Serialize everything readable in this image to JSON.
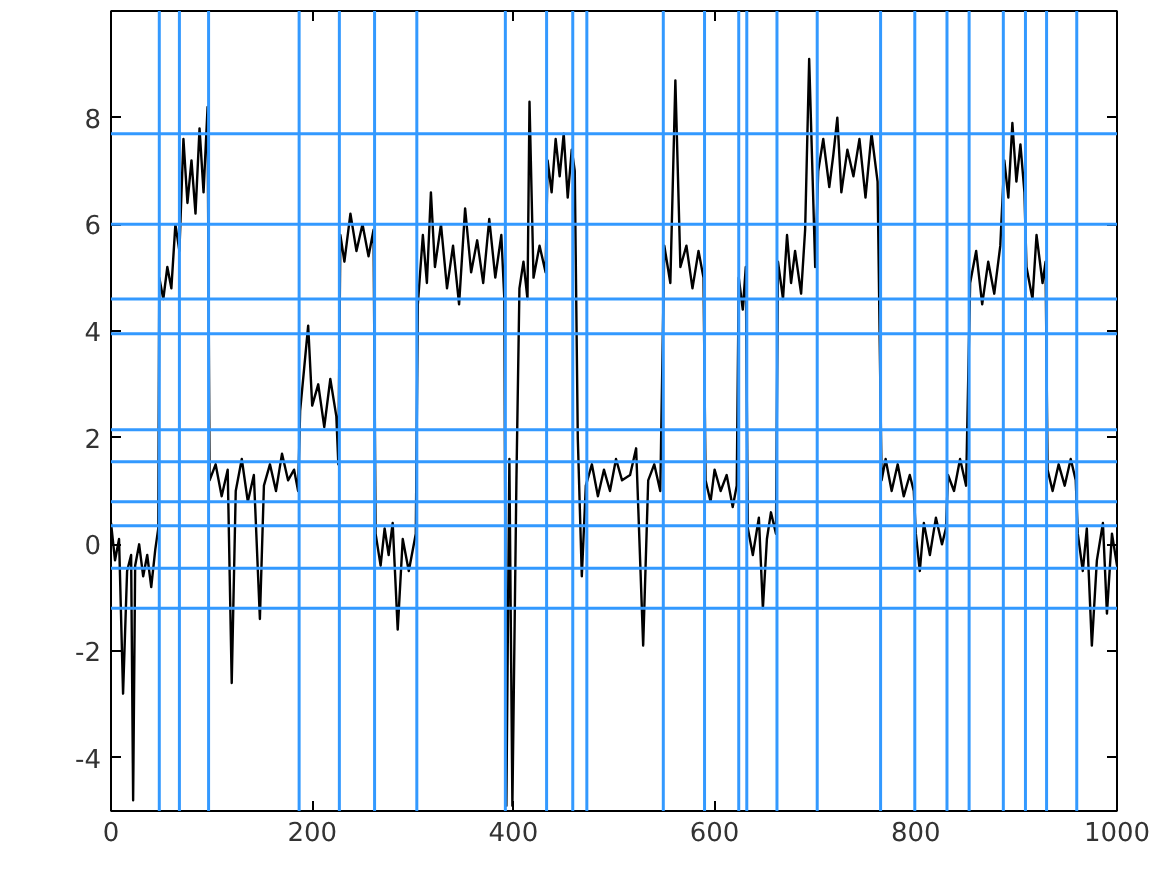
{
  "chart_data": {
    "type": "line",
    "xlim": [
      0,
      1000
    ],
    "ylim": [
      -5,
      10
    ],
    "xticks": [
      0,
      200,
      400,
      600,
      800,
      1000
    ],
    "yticks": [
      -4,
      -2,
      0,
      2,
      4,
      6,
      8
    ],
    "grid": false,
    "line_style": "solid",
    "marker": "none",
    "series": [
      {
        "color": "#000000",
        "x": [
          0,
          4,
          8,
          12,
          16,
          20,
          22,
          24,
          28,
          32,
          36,
          40,
          44,
          47,
          48,
          52,
          56,
          60,
          64,
          68,
          72,
          76,
          80,
          84,
          88,
          92,
          96,
          98,
          104,
          110,
          116,
          120,
          124,
          130,
          136,
          142,
          148,
          152,
          158,
          164,
          170,
          176,
          182,
          186,
          188,
          192,
          196,
          200,
          206,
          212,
          218,
          224,
          226,
          228,
          232,
          238,
          244,
          250,
          256,
          261,
          263,
          268,
          272,
          276,
          280,
          285,
          290,
          296,
          303,
          305,
          310,
          314,
          318,
          322,
          328,
          334,
          340,
          346,
          352,
          358,
          364,
          370,
          376,
          382,
          388,
          391,
          393,
          396,
          399,
          403,
          406,
          410,
          414,
          416,
          420,
          426,
          432,
          434,
          438,
          442,
          446,
          450,
          454,
          458,
          461,
          464,
          468,
          472,
          478,
          484,
          490,
          496,
          502,
          508,
          516,
          522,
          529,
          534,
          540,
          546,
          550,
          556,
          561,
          566,
          572,
          578,
          584,
          589,
          591,
          596,
          600,
          606,
          612,
          618,
          622,
          624,
          628,
          631,
          633,
          638,
          644,
          648,
          652,
          656,
          661,
          663,
          668,
          672,
          676,
          680,
          686,
          690,
          694,
          700,
          703,
          708,
          714,
          718,
          722,
          726,
          732,
          738,
          744,
          750,
          756,
          762,
          766,
          770,
          776,
          782,
          788,
          794,
          798,
          800,
          804,
          808,
          814,
          820,
          826,
          830,
          832,
          838,
          844,
          850,
          854,
          860,
          866,
          872,
          878,
          884,
          888,
          892,
          896,
          900,
          904,
          908,
          910,
          916,
          920,
          926,
          929,
          931,
          936,
          942,
          948,
          954,
          959,
          961,
          966,
          970,
          975,
          980,
          986,
          990,
          995,
          1000
        ],
        "values": [
          0.4,
          -0.3,
          0.1,
          -2.8,
          -0.5,
          -0.2,
          -4.8,
          -0.4,
          0.0,
          -0.6,
          -0.2,
          -0.8,
          -0.1,
          0.3,
          5.0,
          4.6,
          5.2,
          4.8,
          6.0,
          5.5,
          7.6,
          6.4,
          7.2,
          6.2,
          7.8,
          6.6,
          8.2,
          1.2,
          1.5,
          0.9,
          1.4,
          -2.6,
          1.0,
          1.6,
          0.8,
          1.3,
          -1.4,
          1.1,
          1.5,
          1.0,
          1.7,
          1.2,
          1.4,
          1.0,
          2.5,
          3.3,
          4.1,
          2.6,
          3.0,
          2.2,
          3.1,
          2.4,
          1.5,
          5.8,
          5.3,
          6.2,
          5.5,
          6.0,
          5.4,
          5.9,
          0.2,
          -0.4,
          0.3,
          -0.2,
          0.4,
          -1.6,
          0.1,
          -0.5,
          0.2,
          4.5,
          5.8,
          4.9,
          6.6,
          5.2,
          6.0,
          4.8,
          5.6,
          4.5,
          6.3,
          5.1,
          5.7,
          4.9,
          6.1,
          5.0,
          5.8,
          4.6,
          -4.9,
          1.6,
          -4.9,
          1.2,
          4.8,
          5.3,
          4.6,
          8.3,
          5.0,
          5.6,
          5.1,
          7.2,
          6.6,
          7.6,
          6.9,
          7.7,
          6.5,
          7.4,
          7.0,
          2.0,
          -0.6,
          1.1,
          1.5,
          0.9,
          1.4,
          1.0,
          1.6,
          1.2,
          1.3,
          1.8,
          -1.9,
          1.2,
          1.5,
          1.0,
          5.6,
          4.9,
          8.7,
          5.2,
          5.6,
          4.8,
          5.5,
          5.0,
          1.2,
          0.8,
          1.4,
          1.0,
          1.3,
          0.7,
          1.1,
          5.0,
          4.4,
          5.2,
          0.3,
          -0.2,
          0.5,
          -1.2,
          0.1,
          0.6,
          0.2,
          5.3,
          4.6,
          5.8,
          4.9,
          5.5,
          4.7,
          5.9,
          9.1,
          5.2,
          7.0,
          7.6,
          6.7,
          7.3,
          8.0,
          6.6,
          7.4,
          6.9,
          7.6,
          6.5,
          7.7,
          6.8,
          1.2,
          1.6,
          1.0,
          1.5,
          0.9,
          1.3,
          1.0,
          0.2,
          -0.5,
          0.4,
          -0.2,
          0.5,
          0.0,
          0.3,
          1.3,
          1.0,
          1.6,
          1.1,
          4.9,
          5.5,
          4.5,
          5.3,
          4.7,
          5.6,
          7.2,
          6.5,
          7.9,
          6.8,
          7.5,
          6.6,
          5.2,
          4.6,
          5.8,
          4.9,
          5.3,
          1.4,
          1.0,
          1.5,
          1.1,
          1.6,
          1.2,
          0.2,
          -0.5,
          0.3,
          -1.9,
          -0.3,
          0.4,
          -1.3,
          0.2,
          -0.4
        ]
      }
    ],
    "ref_lines": [
      {
        "axis": "y",
        "value": 7.7,
        "color": "#3399ff"
      },
      {
        "axis": "y",
        "value": 6.0,
        "color": "#3399ff"
      },
      {
        "axis": "y",
        "value": 4.6,
        "color": "#3399ff"
      },
      {
        "axis": "y",
        "value": 3.95,
        "color": "#3399ff"
      },
      {
        "axis": "y",
        "value": 2.15,
        "color": "#3399ff"
      },
      {
        "axis": "y",
        "value": 1.55,
        "color": "#3399ff"
      },
      {
        "axis": "y",
        "value": 0.8,
        "color": "#3399ff"
      },
      {
        "axis": "y",
        "value": 0.35,
        "color": "#3399ff"
      },
      {
        "axis": "y",
        "value": -0.45,
        "color": "#3399ff"
      },
      {
        "axis": "y",
        "value": -1.2,
        "color": "#3399ff"
      },
      {
        "axis": "x",
        "value": 48,
        "color": "#3399ff"
      },
      {
        "axis": "x",
        "value": 68,
        "color": "#3399ff"
      },
      {
        "axis": "x",
        "value": 97,
        "color": "#3399ff"
      },
      {
        "axis": "x",
        "value": 187,
        "color": "#3399ff"
      },
      {
        "axis": "x",
        "value": 227,
        "color": "#3399ff"
      },
      {
        "axis": "x",
        "value": 262,
        "color": "#3399ff"
      },
      {
        "axis": "x",
        "value": 304,
        "color": "#3399ff"
      },
      {
        "axis": "x",
        "value": 392,
        "color": "#3399ff"
      },
      {
        "axis": "x",
        "value": 433,
        "color": "#3399ff"
      },
      {
        "axis": "x",
        "value": 459,
        "color": "#3399ff"
      },
      {
        "axis": "x",
        "value": 473,
        "color": "#3399ff"
      },
      {
        "axis": "x",
        "value": 549,
        "color": "#3399ff"
      },
      {
        "axis": "x",
        "value": 590,
        "color": "#3399ff"
      },
      {
        "axis": "x",
        "value": 624,
        "color": "#3399ff"
      },
      {
        "axis": "x",
        "value": 632,
        "color": "#3399ff"
      },
      {
        "axis": "x",
        "value": 662,
        "color": "#3399ff"
      },
      {
        "axis": "x",
        "value": 702,
        "color": "#3399ff"
      },
      {
        "axis": "x",
        "value": 765,
        "color": "#3399ff"
      },
      {
        "axis": "x",
        "value": 799,
        "color": "#3399ff"
      },
      {
        "axis": "x",
        "value": 831,
        "color": "#3399ff"
      },
      {
        "axis": "x",
        "value": 853,
        "color": "#3399ff"
      },
      {
        "axis": "x",
        "value": 887,
        "color": "#3399ff"
      },
      {
        "axis": "x",
        "value": 909,
        "color": "#3399ff"
      },
      {
        "axis": "x",
        "value": 930,
        "color": "#3399ff"
      },
      {
        "axis": "x",
        "value": 960,
        "color": "#3399ff"
      }
    ]
  }
}
